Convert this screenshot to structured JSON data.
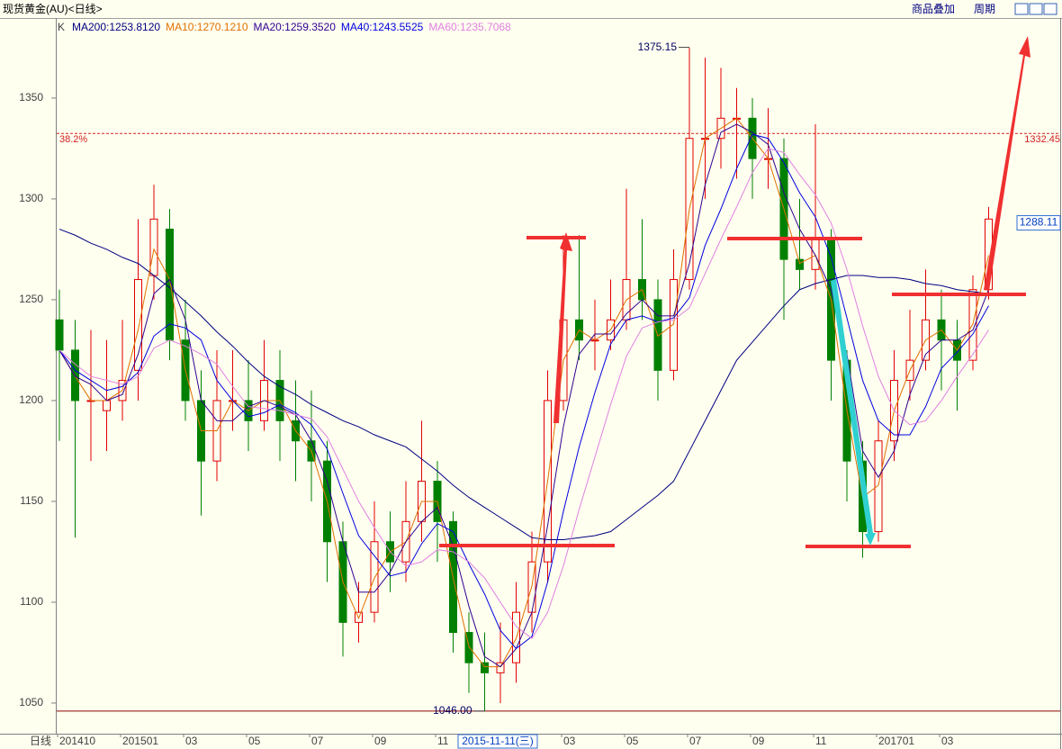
{
  "header": {
    "title": "现货黄金(AU)<日线>",
    "buttons": [
      "商品叠加",
      "周期"
    ]
  },
  "chart_data": {
    "type": "candlestick",
    "price_label": "K",
    "period_label": "日线",
    "cursor_date": "2015-11-11(三)",
    "categories": [
      "201410",
      null,
      null,
      null,
      "201501",
      null,
      null,
      null,
      "03",
      null,
      null,
      null,
      "05",
      null,
      null,
      null,
      "07",
      null,
      null,
      null,
      "09",
      null,
      null,
      null,
      "11",
      null,
      null,
      null,
      null,
      null,
      null,
      null,
      "03",
      null,
      null,
      null,
      "05",
      null,
      null,
      null,
      "07",
      null,
      null,
      null,
      "09",
      null,
      null,
      null,
      "11",
      null,
      null,
      null,
      "201701",
      null,
      null,
      null,
      "03",
      null,
      null,
      null
    ],
    "open": [
      1240,
      1225,
      1200,
      1195,
      1200,
      1215,
      1262,
      1285,
      1230,
      1200,
      1170,
      1200,
      1200,
      1190,
      1210,
      1190,
      1180,
      1170,
      1130,
      1090,
      1095,
      1130,
      1120,
      1140,
      1160,
      1140,
      1085,
      1070,
      1065,
      1070,
      1095,
      1120,
      1200,
      1240,
      1230,
      1230,
      1240,
      1260,
      1250,
      1215,
      1260,
      1330,
      1330,
      1340,
      1340,
      1320,
      1320,
      1270,
      1265,
      1280,
      1220,
      1170,
      1135,
      1180,
      1210,
      1220,
      1240,
      1230,
      1220,
      1255
    ],
    "high": [
      1255,
      1240,
      1235,
      1230,
      1240,
      1290,
      1307,
      1295,
      1250,
      1215,
      1225,
      1225,
      1220,
      1230,
      1225,
      1210,
      1205,
      1180,
      1140,
      1110,
      1150,
      1145,
      1160,
      1190,
      1170,
      1145,
      1095,
      1085,
      1090,
      1110,
      1135,
      1215,
      1282,
      1282,
      1250,
      1260,
      1305,
      1290,
      1260,
      1275,
      1375,
      1370,
      1365,
      1355,
      1350,
      1345,
      1330,
      1300,
      1337,
      1285,
      1225,
      1180,
      1190,
      1225,
      1245,
      1265,
      1255,
      1240,
      1262,
      1296
    ],
    "low": [
      1180,
      1132,
      1170,
      1175,
      1190,
      1200,
      1250,
      1220,
      1190,
      1143,
      1160,
      1185,
      1175,
      1185,
      1170,
      1160,
      1150,
      1110,
      1073,
      1080,
      1090,
      1105,
      1110,
      1130,
      1120,
      1075,
      1055,
      1046,
      1050,
      1060,
      1085,
      1110,
      1195,
      1220,
      1215,
      1225,
      1235,
      1240,
      1200,
      1210,
      1255,
      1300,
      1315,
      1310,
      1300,
      1305,
      1240,
      1255,
      1255,
      1200,
      1150,
      1122,
      1130,
      1170,
      1200,
      1215,
      1205,
      1195,
      1215,
      1250
    ],
    "close": [
      1225,
      1200,
      1200,
      1200,
      1210,
      1260,
      1290,
      1230,
      1200,
      1170,
      1200,
      1200,
      1190,
      1210,
      1190,
      1180,
      1170,
      1130,
      1090,
      1095,
      1130,
      1120,
      1140,
      1160,
      1140,
      1085,
      1070,
      1065,
      1070,
      1095,
      1120,
      1200,
      1240,
      1230,
      1230,
      1240,
      1260,
      1250,
      1215,
      1260,
      1330,
      1330,
      1340,
      1340,
      1320,
      1320,
      1270,
      1265,
      1280,
      1220,
      1170,
      1135,
      1180,
      1210,
      1220,
      1240,
      1230,
      1220,
      1255,
      1290
    ],
    "up_color": "#e00000",
    "down_color": "#008000",
    "series": [
      {
        "name": "MA200:1253.8120",
        "color": "#000080",
        "values": [
          1285,
          1282,
          1278,
          1275,
          1271,
          1268,
          1262,
          1256,
          1249,
          1242,
          1234,
          1227,
          1219,
          1212,
          1207,
          1203,
          1198,
          1194,
          1190,
          1187,
          1183,
          1180,
          1177,
          1171,
          1165,
          1158,
          1152,
          1147,
          1142,
          1137,
          1132,
          1131,
          1131,
          1132,
          1133,
          1135,
          1141,
          1147,
          1153,
          1160,
          1175,
          1190,
          1205,
          1220,
          1229,
          1238,
          1247,
          1255,
          1258,
          1260,
          1262,
          1262,
          1261,
          1261,
          1260,
          1258,
          1257,
          1255,
          1254,
          1253
        ]
      },
      {
        "name": "MA10:1270.1210",
        "color": "#e07000",
        "values": [
          1225,
          1212,
          1200,
          1200,
          1205,
          1235,
          1275,
          1260,
          1215,
          1185,
          1185,
          1200,
          1195,
          1200,
          1200,
          1185,
          1175,
          1150,
          1110,
          1092,
          1112,
          1125,
          1130,
          1150,
          1150,
          1112,
          1078,
          1068,
          1068,
          1082,
          1108,
          1160,
          1220,
          1235,
          1230,
          1235,
          1250,
          1255,
          1232,
          1238,
          1295,
          1330,
          1335,
          1340,
          1330,
          1320,
          1295,
          1268,
          1272,
          1250,
          1195,
          1152,
          1158,
          1195,
          1215,
          1230,
          1235,
          1225,
          1238,
          1272
        ]
      },
      {
        "name": "MA20:1259.3520",
        "color": "#300090",
        "values": [
          1225,
          1212,
          1208,
          1200,
          1203,
          1223,
          1253,
          1260,
          1240,
          1200,
          1190,
          1190,
          1197,
          1200,
          1197,
          1193,
          1180,
          1160,
          1130,
          1105,
          1105,
          1115,
          1130,
          1140,
          1147,
          1128,
          1098,
          1073,
          1068,
          1077,
          1095,
          1138,
          1187,
          1223,
          1233,
          1233,
          1243,
          1250,
          1242,
          1242,
          1268,
          1307,
          1333,
          1337,
          1333,
          1327,
          1303,
          1285,
          1272,
          1255,
          1223,
          1175,
          1162,
          1175,
          1203,
          1223,
          1230,
          1230,
          1235,
          1255
        ]
      },
      {
        "name": "MA40:1243.5525",
        "color": "#0000e0",
        "values": [
          1225,
          1215,
          1210,
          1205,
          1207,
          1214,
          1232,
          1238,
          1236,
          1230,
          1210,
          1200,
          1192,
          1194,
          1198,
          1194,
          1188,
          1176,
          1154,
          1133,
          1123,
          1113,
          1115,
          1129,
          1139,
          1135,
          1119,
          1104,
          1086,
          1077,
          1083,
          1110,
          1145,
          1177,
          1204,
          1228,
          1240,
          1242,
          1239,
          1241,
          1251,
          1277,
          1295,
          1315,
          1332,
          1330,
          1318,
          1303,
          1291,
          1271,
          1241,
          1210,
          1190,
          1183,
          1183,
          1197,
          1216,
          1224,
          1233,
          1247
        ]
      },
      {
        "name": "MA60:1235.7068",
        "color": "#e080e0",
        "values": [
          1225,
          1218,
          1212,
          1210,
          1208,
          1212,
          1226,
          1230,
          1227,
          1223,
          1218,
          1207,
          1197,
          1196,
          1195,
          1193,
          1191,
          1182,
          1166,
          1150,
          1137,
          1125,
          1118,
          1120,
          1126,
          1125,
          1120,
          1112,
          1100,
          1088,
          1082,
          1095,
          1118,
          1146,
          1172,
          1198,
          1222,
          1236,
          1239,
          1240,
          1246,
          1263,
          1280,
          1296,
          1313,
          1325,
          1323,
          1312,
          1302,
          1288,
          1265,
          1237,
          1212,
          1195,
          1188,
          1190,
          1200,
          1212,
          1223,
          1235
        ]
      }
    ],
    "ylim": [
      1034.8,
      1389.7
    ],
    "yticks": [
      1050,
      1100,
      1150,
      1200,
      1250,
      1300,
      1350
    ],
    "high_mark": 1375.15,
    "low_mark": {
      "value": 1046,
      "label": "1046.00"
    },
    "fib_level": {
      "ratio": "38.2%",
      "value": 1332.45
    },
    "last_price": 1288.11
  }
}
